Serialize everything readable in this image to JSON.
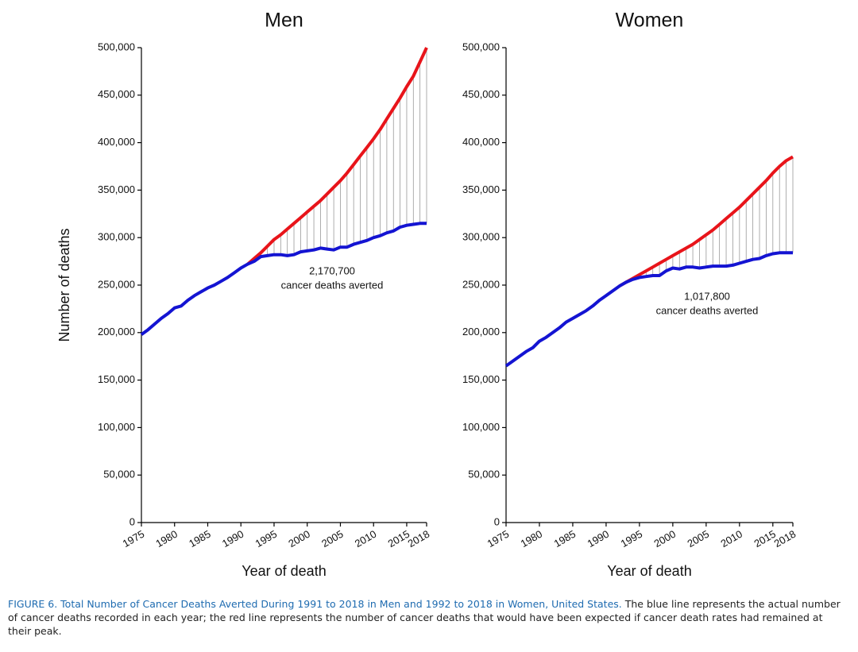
{
  "chart_data": [
    {
      "type": "line",
      "title": "Men",
      "xlabel": "Year of death",
      "ylabel": "Number of deaths",
      "annotation": [
        "2,170,700",
        "cancer deaths averted"
      ],
      "x": [
        1975,
        1976,
        1977,
        1978,
        1979,
        1980,
        1981,
        1982,
        1983,
        1984,
        1985,
        1986,
        1987,
        1988,
        1989,
        1990,
        1991,
        1992,
        1993,
        1994,
        1995,
        1996,
        1997,
        1998,
        1999,
        2000,
        2001,
        2002,
        2003,
        2004,
        2005,
        2006,
        2007,
        2008,
        2009,
        2010,
        2011,
        2012,
        2013,
        2014,
        2015,
        2016,
        2017,
        2018
      ],
      "series": [
        {
          "color": "#e8141a",
          "values": [
            null,
            null,
            null,
            null,
            null,
            null,
            null,
            null,
            null,
            null,
            null,
            null,
            null,
            null,
            null,
            null,
            272000,
            278000,
            284000,
            291000,
            298000,
            303000,
            309000,
            315000,
            321000,
            327000,
            333000,
            339000,
            346000,
            353000,
            360000,
            368000,
            377000,
            386000,
            395000,
            404000,
            414000,
            425000,
            436000,
            447000,
            459000,
            470000,
            485000,
            500000
          ]
        },
        {
          "color": "#1414d2",
          "values": [
            198000,
            203000,
            209000,
            215000,
            220000,
            226000,
            228000,
            234000,
            239000,
            243000,
            247000,
            250000,
            254000,
            258000,
            263000,
            268000,
            272000,
            275000,
            280000,
            281000,
            282000,
            282000,
            281000,
            282000,
            285000,
            286000,
            287000,
            289000,
            288000,
            287000,
            290000,
            290000,
            293000,
            295000,
            297000,
            300000,
            302000,
            305000,
            307000,
            311000,
            313000,
            314000,
            315000,
            315000
          ]
        }
      ],
      "xlim": [
        1975,
        2018
      ],
      "xticks": [
        1975,
        1980,
        1985,
        1990,
        1995,
        2000,
        2005,
        2010,
        2015,
        2018
      ],
      "ylim": [
        0,
        500000
      ],
      "yticks": [
        0,
        {
          "value": 50000,
          "label": "50,000"
        },
        {
          "value": 100000,
          "label": "100,000"
        },
        {
          "value": 150000,
          "label": "150,000"
        },
        {
          "value": 200000,
          "label": "200,000"
        },
        {
          "value": 250000,
          "label": "250,000"
        },
        {
          "value": 300000,
          "label": "300,000"
        },
        {
          "value": 350000,
          "label": "350,000"
        },
        {
          "value": 400000,
          "label": "400,000"
        },
        {
          "value": 450000,
          "label": "450,000"
        },
        {
          "value": 500000,
          "label": "500,000"
        }
      ]
    },
    {
      "type": "line",
      "title": "Women",
      "xlabel": "Year of death",
      "annotation": [
        "1,017,800",
        "cancer deaths averted"
      ],
      "x": [
        1975,
        1976,
        1977,
        1978,
        1979,
        1980,
        1981,
        1982,
        1983,
        1984,
        1985,
        1986,
        1987,
        1988,
        1989,
        1990,
        1991,
        1992,
        1993,
        1994,
        1995,
        1996,
        1997,
        1998,
        1999,
        2000,
        2001,
        2002,
        2003,
        2004,
        2005,
        2006,
        2007,
        2008,
        2009,
        2010,
        2011,
        2012,
        2013,
        2014,
        2015,
        2016,
        2017,
        2018
      ],
      "series": [
        {
          "color": "#e8141a",
          "values": [
            null,
            null,
            null,
            null,
            null,
            null,
            null,
            null,
            null,
            null,
            null,
            null,
            null,
            null,
            null,
            null,
            null,
            249000,
            253000,
            257000,
            261000,
            265000,
            269000,
            273000,
            277000,
            281000,
            285000,
            289000,
            293000,
            298000,
            303000,
            308000,
            314000,
            320000,
            326000,
            332000,
            339000,
            346000,
            353000,
            360000,
            368000,
            375000,
            381000,
            385000
          ]
        },
        {
          "color": "#1414d2",
          "values": [
            165000,
            170000,
            175000,
            180000,
            184000,
            191000,
            195000,
            200000,
            205000,
            211000,
            215000,
            219000,
            223000,
            228000,
            234000,
            239000,
            244000,
            249000,
            253000,
            256000,
            258000,
            259000,
            260000,
            260000,
            265000,
            268000,
            267000,
            269000,
            269000,
            268000,
            269000,
            270000,
            270000,
            270000,
            271000,
            273000,
            275000,
            277000,
            278000,
            281000,
            283000,
            284000,
            284000,
            284000
          ]
        }
      ],
      "xlim": [
        1975,
        2018
      ],
      "xticks": [
        1975,
        1980,
        1985,
        1990,
        1995,
        2000,
        2005,
        2010,
        2015,
        2018
      ],
      "ylim": [
        0,
        500000
      ],
      "yticks": [
        0,
        {
          "value": 50000,
          "label": "50,000"
        },
        {
          "value": 100000,
          "label": "100,000"
        },
        {
          "value": 150000,
          "label": "150,000"
        },
        {
          "value": 200000,
          "label": "200,000"
        },
        {
          "value": 250000,
          "label": "250,000"
        },
        {
          "value": 300000,
          "label": "300,000"
        },
        {
          "value": 350000,
          "label": "350,000"
        },
        {
          "value": 400000,
          "label": "400,000"
        },
        {
          "value": 450000,
          "label": "450,000"
        },
        {
          "value": 500000,
          "label": "500,000"
        }
      ]
    }
  ],
  "caption": {
    "label": "FIGURE 6. Total Number of Cancer Deaths Averted During 1991 to 2018 in Men and 1992 to 2018 in Women, United States.",
    "text": "The blue line represents the actual number of cancer deaths recorded in each year; the red line represents the number of cancer deaths that would have been expected if cancer death rates had remained at their peak."
  }
}
